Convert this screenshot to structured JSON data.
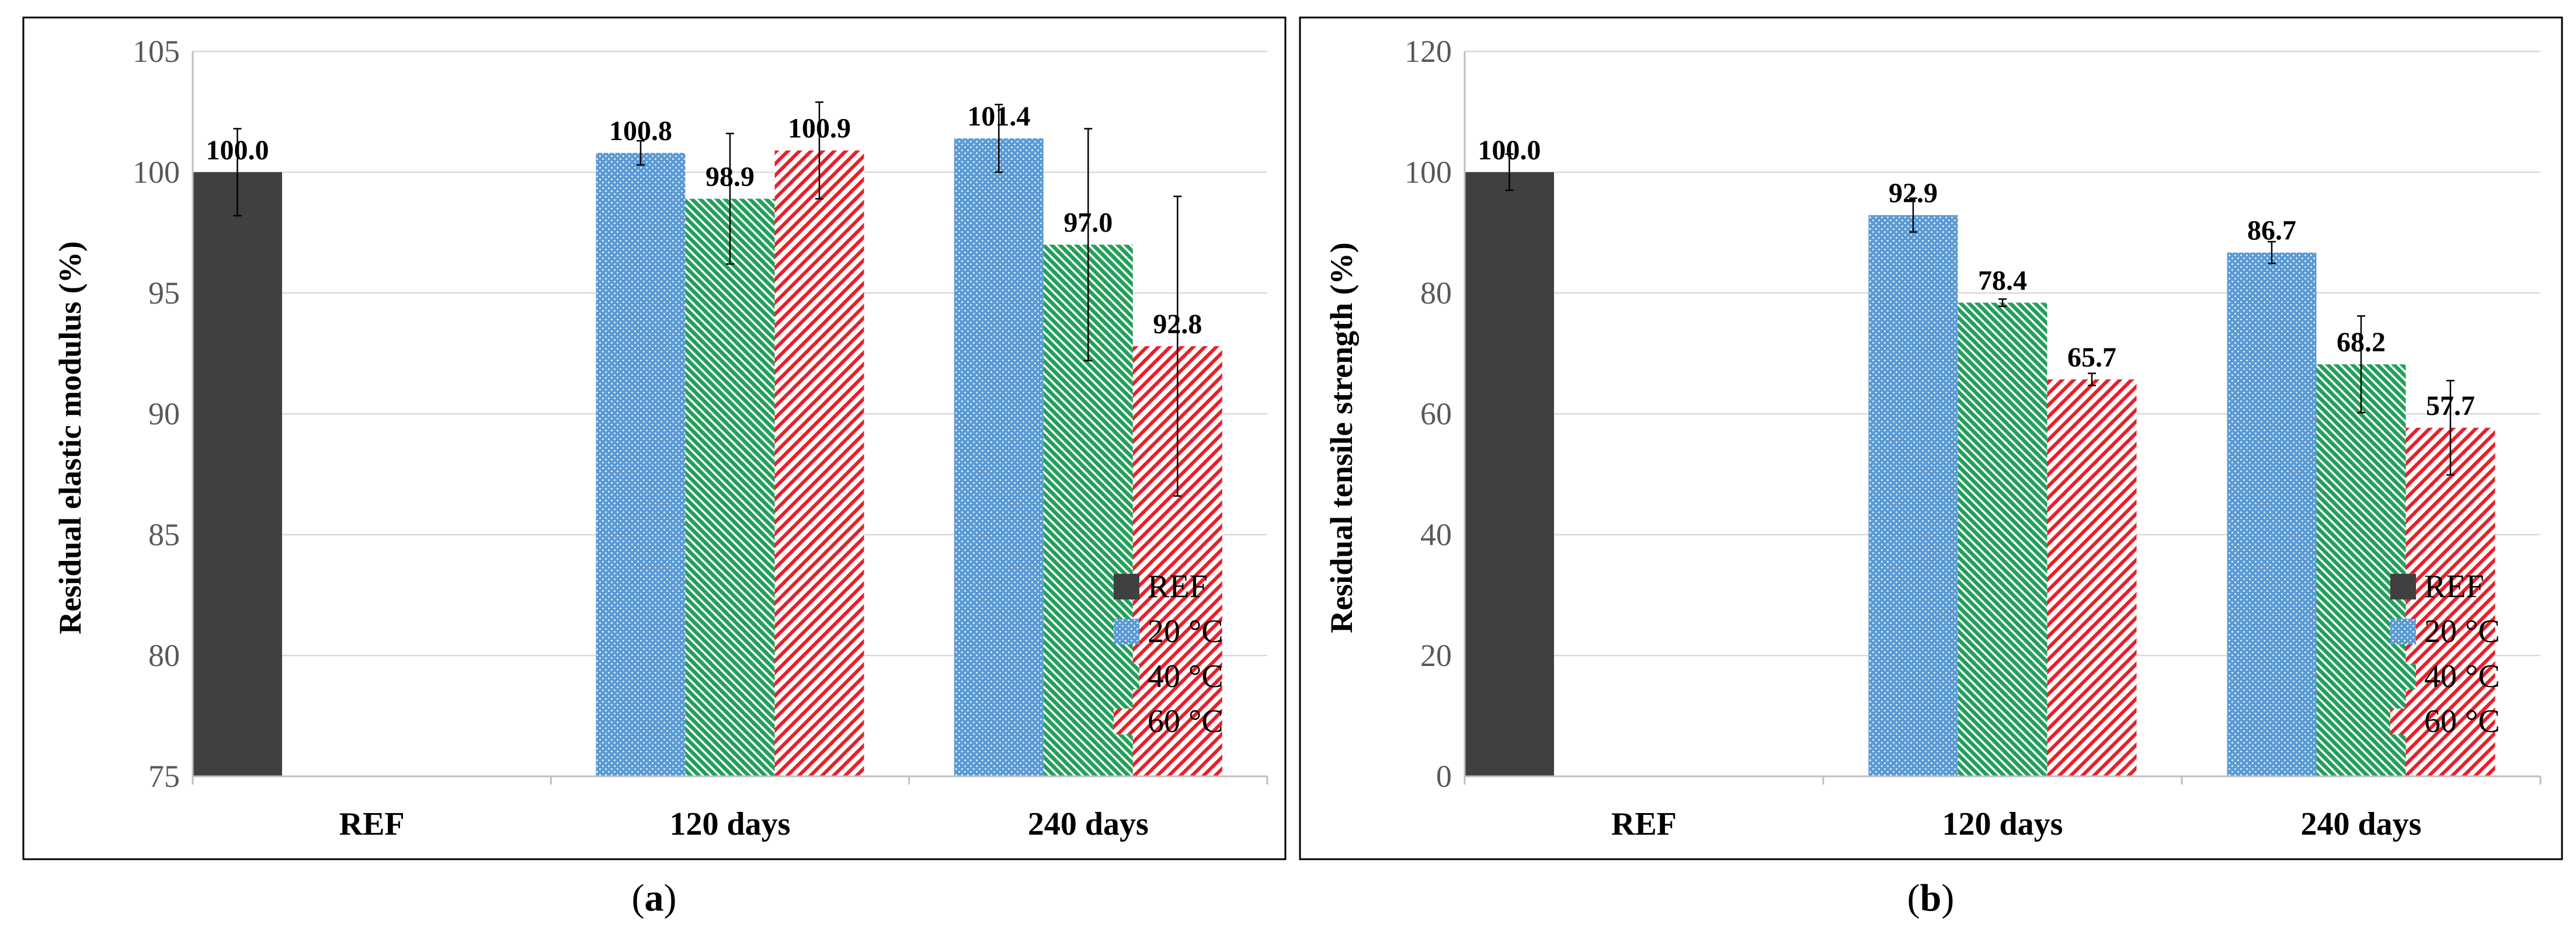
{
  "chart_data": [
    {
      "type": "bar",
      "panel": "(a)",
      "caption_letter": "a",
      "ylabel": "Residual elastic modulus (%)",
      "ylim": [
        75,
        105
      ],
      "yticks": [
        "75",
        "80",
        "85",
        "90",
        "95",
        "100",
        "105"
      ],
      "categories": [
        "REF",
        "120 days",
        "240 days"
      ],
      "series": [
        {
          "name": "REF",
          "values": [
            100.0,
            null,
            null
          ],
          "labels": [
            "100.0",
            null,
            null
          ],
          "err": [
            1.8,
            null,
            null
          ]
        },
        {
          "name": "20 °C",
          "values": [
            null,
            100.8,
            101.4
          ],
          "labels": [
            null,
            "100.8",
            "101.4"
          ],
          "err": [
            null,
            0.5,
            1.4
          ]
        },
        {
          "name": "40 °C",
          "values": [
            null,
            98.9,
            97.0
          ],
          "labels": [
            null,
            "98.9",
            "97.0"
          ],
          "err": [
            null,
            2.7,
            4.8
          ]
        },
        {
          "name": "60 °C",
          "values": [
            null,
            100.9,
            92.8
          ],
          "labels": [
            null,
            "100.9",
            "92.8"
          ],
          "err": [
            null,
            2.0,
            6.2
          ]
        }
      ],
      "legend": [
        "REF",
        "20 °C",
        "40 °C",
        "60 °C"
      ],
      "legend_position": "bottom-right"
    },
    {
      "type": "bar",
      "panel": "(b)",
      "caption_letter": "b",
      "ylabel": "Residual   tensile strength (%)",
      "ylim": [
        0,
        120
      ],
      "yticks": [
        "0",
        "20",
        "40",
        "60",
        "80",
        "100",
        "120"
      ],
      "categories": [
        "REF",
        "120 days",
        "240 days"
      ],
      "series": [
        {
          "name": "REF",
          "values": [
            100.0,
            null,
            null
          ],
          "labels": [
            "100.0",
            null,
            null
          ],
          "err": [
            3.0,
            null,
            null
          ]
        },
        {
          "name": "20 °C",
          "values": [
            null,
            92.9,
            86.7
          ],
          "labels": [
            null,
            "92.9",
            "86.7"
          ],
          "err": [
            null,
            2.8,
            1.8
          ]
        },
        {
          "name": "40 °C",
          "values": [
            null,
            78.4,
            68.2
          ],
          "labels": [
            null,
            "78.4",
            "68.2"
          ],
          "err": [
            null,
            0.6,
            8.0
          ]
        },
        {
          "name": "60 °C",
          "values": [
            null,
            65.7,
            57.7
          ],
          "labels": [
            null,
            "65.7",
            "57.7"
          ],
          "err": [
            null,
            1.0,
            7.8
          ]
        }
      ],
      "legend": [
        "REF",
        "20 °C",
        "40 °C",
        "60 °C"
      ],
      "legend_position": "bottom-right"
    }
  ],
  "colors": {
    "ref": "#404040",
    "c20": "#5b9bd5",
    "c40": "#22a05a",
    "c60": "#e8202a",
    "grid": "#d9d9d9",
    "frame": "#000000"
  }
}
